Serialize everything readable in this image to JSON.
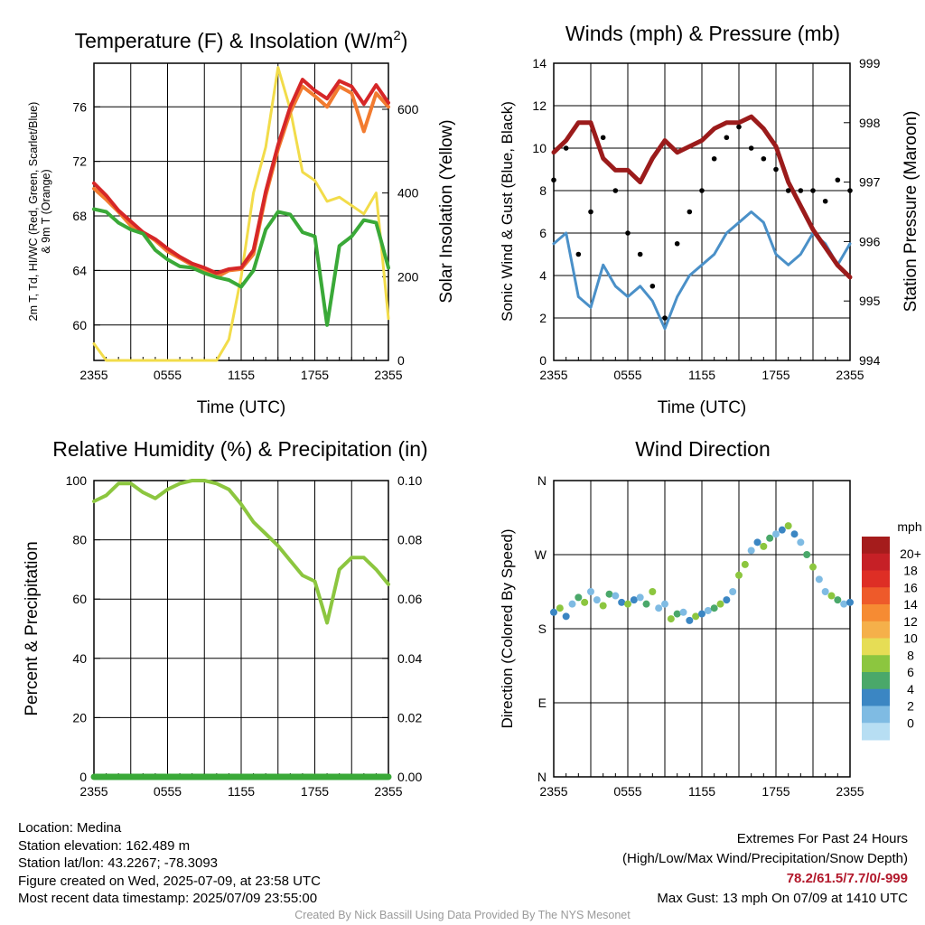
{
  "chart_data": [
    {
      "type": "line",
      "title": "Temperature (F) & Insolation (W/m²)",
      "title_main": "Temperature (F) & Insolation (W/m",
      "title_sup": "2",
      "title_end": ")",
      "xlabel": "Time (UTC)",
      "ylabel_left_1": "2m T, Td, HI/WC (Red, Green, Scarlet/Blue)",
      "ylabel_left_2": "& 9m T (Orange)",
      "ylabel_right": "Solar Insolation (Yellow)",
      "xticks": [
        "2355",
        "0555",
        "1155",
        "1755",
        "2355"
      ],
      "yticks_left": [
        60,
        64,
        68,
        72,
        76
      ],
      "yticks_right": [
        0,
        200,
        400,
        600
      ],
      "ylim_left": [
        57.4,
        79.2
      ],
      "ylim_right": [
        0,
        710
      ],
      "series": [
        {
          "color": "#d62728",
          "x": [
            0,
            1,
            2,
            3,
            4,
            5,
            6,
            7,
            8,
            9,
            10,
            11,
            12,
            13,
            14,
            15,
            16,
            17,
            18,
            19,
            20,
            21,
            22,
            23,
            24
          ],
          "values": [
            70.4,
            69.5,
            68.4,
            67.6,
            66.8,
            66.3,
            65.6,
            65.0,
            64.5,
            64.2,
            63.8,
            64.1,
            64.2,
            65.5,
            69.8,
            73.2,
            76.0,
            78.0,
            77.2,
            76.6,
            77.9,
            77.5,
            76.2,
            77.6,
            76.3
          ]
        },
        {
          "color": "#f27b30",
          "x": [
            0,
            1,
            2,
            3,
            4,
            5,
            6,
            7,
            8,
            9,
            10,
            11,
            12,
            13,
            14,
            15,
            16,
            17,
            18,
            19,
            20,
            21,
            22,
            23,
            24
          ],
          "values": [
            70.0,
            69.2,
            68.3,
            67.3,
            66.8,
            66.2,
            65.4,
            64.9,
            64.4,
            64.0,
            63.5,
            64.0,
            64.1,
            65.2,
            69.5,
            72.9,
            75.6,
            77.5,
            76.8,
            76.0,
            77.5,
            77.0,
            74.2,
            77.0,
            76.0
          ]
        },
        {
          "color": "#3aa938",
          "x": [
            0,
            1,
            2,
            3,
            4,
            5,
            6,
            7,
            8,
            9,
            10,
            11,
            12,
            13,
            14,
            15,
            16,
            17,
            18,
            19,
            20,
            21,
            22,
            23,
            24
          ],
          "values": [
            68.5,
            68.3,
            67.5,
            67.0,
            66.7,
            65.5,
            64.8,
            64.3,
            64.2,
            63.8,
            63.5,
            63.3,
            62.8,
            64.0,
            67.0,
            68.3,
            68.1,
            66.8,
            66.5,
            60.0,
            65.8,
            66.5,
            67.7,
            67.5,
            64.2
          ]
        },
        {
          "color": "#f2dc4a",
          "axis": "right",
          "x": [
            0,
            1,
            2,
            3,
            4,
            5,
            6,
            7,
            8,
            9,
            10,
            11,
            12,
            13,
            14,
            15,
            16,
            17,
            18,
            19,
            20,
            21,
            22,
            23,
            24
          ],
          "values": [
            40,
            0,
            0,
            0,
            0,
            0,
            0,
            0,
            0,
            0,
            0,
            50,
            200,
            400,
            510,
            700,
            600,
            450,
            430,
            380,
            390,
            370,
            350,
            400,
            100
          ]
        }
      ]
    },
    {
      "type": "line",
      "title": "Winds (mph) & Pressure (mb)",
      "xlabel": "Time (UTC)",
      "ylabel_left": "Sonic Wind & Gust (Blue, Black)",
      "ylabel_right": "Station Pressure (Maroon)",
      "xticks": [
        "2355",
        "0555",
        "1155",
        "1755",
        "2355"
      ],
      "yticks_left": [
        0,
        2,
        4,
        6,
        8,
        10,
        12,
        14
      ],
      "yticks_right": [
        994,
        995,
        996,
        997,
        998,
        999
      ],
      "ylim_left": [
        0,
        14
      ],
      "ylim_right": [
        994,
        999
      ],
      "series": [
        {
          "color": "#4a90c8",
          "x": [
            0,
            1,
            2,
            3,
            4,
            5,
            6,
            7,
            8,
            9,
            10,
            11,
            12,
            13,
            14,
            15,
            16,
            17,
            18,
            19,
            20,
            21,
            22,
            23,
            24
          ],
          "values": [
            5.5,
            6.0,
            3.0,
            2.5,
            4.5,
            3.5,
            3.0,
            3.5,
            2.8,
            1.5,
            3.0,
            4.0,
            4.5,
            5.0,
            6.0,
            6.5,
            7.0,
            6.5,
            5.0,
            4.5,
            5.0,
            6.0,
            5.5,
            4.5,
            5.5
          ]
        },
        {
          "color": "#9b1b1b",
          "axis": "right",
          "x": [
            0,
            1,
            2,
            3,
            4,
            5,
            6,
            7,
            8,
            9,
            10,
            11,
            12,
            13,
            14,
            15,
            16,
            17,
            18,
            19,
            20,
            21,
            22,
            23,
            24
          ],
          "values": [
            997.5,
            997.7,
            998.0,
            998.0,
            997.4,
            997.2,
            997.2,
            997.0,
            997.4,
            997.7,
            997.5,
            997.6,
            997.7,
            997.9,
            998.0,
            998.0,
            998.1,
            997.9,
            997.6,
            997.0,
            996.6,
            996.2,
            995.9,
            995.6,
            995.4
          ]
        },
        {
          "color": "#000000",
          "style": "points",
          "x": [
            0,
            1,
            2,
            3,
            4,
            5,
            6,
            7,
            8,
            9,
            10,
            11,
            12,
            13,
            14,
            15,
            16,
            17,
            18,
            19,
            20,
            21,
            22,
            23,
            24
          ],
          "values": [
            8.5,
            10.0,
            5.0,
            7.0,
            10.5,
            8.0,
            6.0,
            5.0,
            3.5,
            2.0,
            5.5,
            7.0,
            8.0,
            9.5,
            10.5,
            11.0,
            10.0,
            9.5,
            9.0,
            8.0,
            8.0,
            8.0,
            7.5,
            8.5,
            8.0
          ]
        }
      ]
    },
    {
      "type": "line",
      "title": "Relative Humidity (%) & Precipitation (in)",
      "xlabel": "",
      "ylabel_left": "Percent & Precipitation",
      "xticks": [
        "2355",
        "0555",
        "1155",
        "1755",
        "2355"
      ],
      "yticks_left": [
        0,
        20,
        40,
        60,
        80,
        100
      ],
      "yticks_right": [
        "0.00",
        "0.02",
        "0.04",
        "0.06",
        "0.08",
        "0.10"
      ],
      "ylim_left": [
        0,
        100
      ],
      "ylim_right": [
        0,
        0.1
      ],
      "series": [
        {
          "color": "#8cc63f",
          "x": [
            0,
            1,
            2,
            3,
            4,
            5,
            6,
            7,
            8,
            9,
            10,
            11,
            12,
            13,
            14,
            15,
            16,
            17,
            18,
            19,
            20,
            21,
            22,
            23,
            24
          ],
          "values": [
            93,
            95,
            99,
            99,
            96,
            94,
            97,
            99,
            100,
            100,
            99,
            97,
            92,
            86,
            82,
            78,
            73,
            68,
            66,
            52,
            70,
            74,
            74,
            70,
            65
          ]
        },
        {
          "color": "#3aa938",
          "axis": "right",
          "x": [
            0,
            24
          ],
          "values": [
            0,
            0
          ]
        }
      ]
    },
    {
      "type": "scatter",
      "title": "Wind Direction",
      "xlabel": "",
      "ylabel_left": "Direction (Colored By Speed)",
      "xticks": [
        "2355",
        "0555",
        "1155",
        "1755",
        "2355"
      ],
      "yticks_left": [
        "N",
        "E",
        "S",
        "W",
        "N"
      ],
      "ylim_left": [
        0,
        360
      ],
      "colorbar_unit": "mph",
      "colorbar_labels": [
        "20+",
        "18",
        "16",
        "14",
        "12",
        "10",
        "8",
        "6",
        "4",
        "2",
        "0"
      ],
      "colorbar_colors": [
        "#a51c1c",
        "#c62026",
        "#de2e25",
        "#ee5a2a",
        "#f68b33",
        "#f5b04a",
        "#e6dd55",
        "#8cc63f",
        "#4aa86a",
        "#3b86c3",
        "#7fbbe3",
        "#b7def3"
      ],
      "series": [
        {
          "name": "direction",
          "x": [
            0,
            0.5,
            1,
            1.5,
            2,
            2.5,
            3,
            3.5,
            4,
            4.5,
            5,
            5.5,
            6,
            6.5,
            7,
            7.5,
            8,
            8.5,
            9,
            9.5,
            10,
            10.5,
            11,
            11.5,
            12,
            12.5,
            13,
            13.5,
            14,
            14.5,
            15,
            15.5,
            16,
            16.5,
            17,
            17.5,
            18,
            18.5,
            19,
            19.5,
            20,
            20.5,
            21,
            21.5,
            22,
            22.5,
            23,
            23.5,
            24
          ],
          "values": [
            200,
            205,
            195,
            210,
            218,
            212,
            225,
            215,
            208,
            222,
            220,
            212,
            210,
            215,
            218,
            210,
            225,
            205,
            210,
            192,
            198,
            200,
            190,
            195,
            198,
            202,
            205,
            210,
            215,
            225,
            245,
            258,
            275,
            285,
            280,
            290,
            295,
            300,
            305,
            295,
            285,
            270,
            255,
            240,
            225,
            220,
            215,
            210,
            212
          ]
        }
      ]
    }
  ],
  "info": {
    "location": "Location: Medina",
    "elevation": "Station elevation: 162.489 m",
    "latlon": "Station lat/lon: 43.2267; -78.3093",
    "created": "Figure created on Wed, 2025-07-09, at 23:58 UTC",
    "recent": "Most recent data timestamp: 2025/07/09 23:55:00",
    "extremes_title": "Extremes For Past 24 Hours",
    "extremes_legend": "(High/Low/Max Wind/Precipitation/Snow Depth)",
    "extremes_values": "78.2/61.5/7.7/0/-999",
    "max_gust": "Max Gust: 13 mph On 07/09 at 1410 UTC",
    "credit": "Created By Nick Bassill Using Data Provided By The NYS Mesonet"
  }
}
